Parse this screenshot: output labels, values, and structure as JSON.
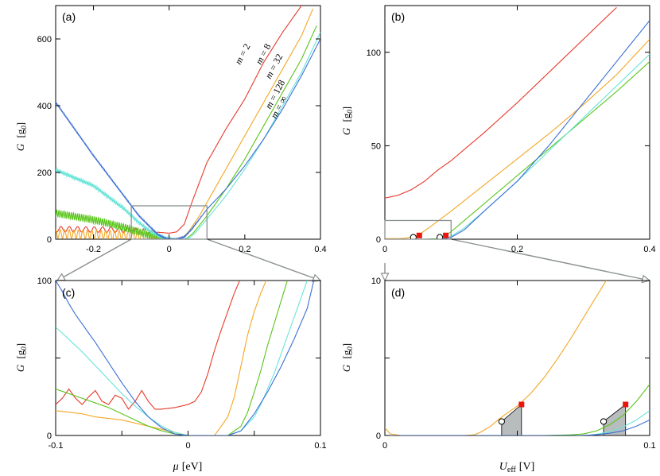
{
  "chart_data": [
    {
      "panel": "(a)",
      "type": "line",
      "xlabel": "",
      "ylabel": "G [g0]",
      "ylabel_parts": [
        "G",
        "[g",
        "0",
        "]"
      ],
      "xlim": [
        -0.3,
        0.4
      ],
      "ylim": [
        0,
        700
      ],
      "xticks": [
        -0.2,
        0,
        0.2,
        0.4
      ],
      "xtick_labels": [
        "-0.2",
        "0",
        "0.2",
        "0.4"
      ],
      "yticks": [
        0,
        200,
        400,
        600
      ],
      "ytick_labels": [
        "0",
        "200",
        "400",
        "600"
      ],
      "zoom_box": {
        "x": [
          -0.1,
          0.1
        ],
        "y": [
          0,
          100
        ]
      },
      "series": [
        {
          "name": "m = 2",
          "color": "#e8392b",
          "x": [
            -0.3,
            -0.2,
            -0.13,
            -0.1,
            -0.07,
            -0.04,
            -0.02,
            0,
            0.02,
            0.04,
            0.06,
            0.1,
            0.15,
            0.2,
            0.25,
            0.3,
            0.35
          ],
          "y": [
            30,
            29,
            28,
            26,
            24,
            22,
            20,
            18,
            22,
            45,
            110,
            230,
            330,
            420,
            530,
            620,
            700
          ],
          "osc": {
            "amp": 8,
            "period": 0.022,
            "end": -0.03
          }
        },
        {
          "name": "m = 8",
          "color": "#f5a623",
          "x": [
            -0.3,
            -0.2,
            -0.12,
            -0.08,
            -0.05,
            -0.02,
            0,
            0.02,
            0.035,
            0.05,
            0.08,
            0.12,
            0.2,
            0.25,
            0.3,
            0.35,
            0.38
          ],
          "y": [
            16,
            14,
            12,
            10,
            6,
            2,
            0,
            0,
            5,
            20,
            70,
            150,
            310,
            410,
            510,
            610,
            690
          ],
          "osc": {
            "amp": 13,
            "period": 0.012,
            "end": -0.02
          }
        },
        {
          "name": "m = 32",
          "color": "#58c51a",
          "x": [
            -0.3,
            -0.2,
            -0.12,
            -0.08,
            -0.05,
            -0.02,
            0,
            0.02,
            0.04,
            0.05,
            0.065,
            0.1,
            0.15,
            0.2,
            0.25,
            0.3,
            0.35,
            0.39
          ],
          "y": [
            78,
            58,
            36,
            22,
            10,
            2,
            0,
            0,
            0,
            5,
            20,
            70,
            150,
            240,
            340,
            440,
            540,
            640
          ],
          "osc": {
            "amp": 11,
            "period": 0.0055,
            "end": 0.0
          }
        },
        {
          "name": "m = 128",
          "color": "#68e4d8",
          "x": [
            -0.3,
            -0.2,
            -0.12,
            -0.08,
            -0.05,
            -0.02,
            0,
            0.02,
            0.04,
            0.055,
            0.07,
            0.1,
            0.15,
            0.2,
            0.25,
            0.3,
            0.35,
            0.4
          ],
          "y": [
            208,
            160,
            92,
            50,
            24,
            6,
            0,
            0,
            0,
            5,
            20,
            60,
            130,
            210,
            300,
            400,
            500,
            620
          ],
          "osc": {
            "amp": 5,
            "period": 0.0042,
            "end": 0.03
          }
        },
        {
          "name": "m = ∞",
          "color": "#3b6fd6",
          "x": [
            -0.3,
            -0.25,
            -0.2,
            -0.15,
            -0.1,
            -0.08,
            -0.05,
            -0.03,
            -0.01,
            0,
            0.02,
            0.04,
            0.06,
            0.08,
            0.1,
            0.15,
            0.2,
            0.25,
            0.3,
            0.35,
            0.4
          ],
          "y": [
            410,
            330,
            250,
            175,
            100,
            70,
            36,
            14,
            2,
            0,
            0,
            6,
            30,
            60,
            90,
            150,
            220,
            300,
            390,
            490,
            600
          ],
          "osc": {
            "amp": 2,
            "period": 0.003,
            "end": 0.1
          }
        }
      ]
    },
    {
      "panel": "(b)",
      "type": "line",
      "xlabel": "",
      "ylabel": "G [g0]",
      "ylabel_parts": [
        "G",
        "[g",
        "0",
        "]"
      ],
      "xlim": [
        0,
        0.4
      ],
      "ylim": [
        0,
        125
      ],
      "xticks": [
        0,
        0.2,
        0.4
      ],
      "xtick_labels": [
        "0",
        "0.2",
        "0.4"
      ],
      "yticks": [
        0,
        50,
        100
      ],
      "ytick_labels": [
        "0",
        "50",
        "100"
      ],
      "zoom_box": {
        "x": [
          0,
          0.1
        ],
        "y": [
          0,
          10
        ]
      },
      "series": [
        {
          "name": "m = 2",
          "color": "#e8392b",
          "x": [
            0,
            0.02,
            0.04,
            0.06,
            0.08,
            0.1,
            0.15,
            0.2,
            0.25,
            0.3,
            0.35
          ],
          "y": [
            22,
            23.5,
            26.5,
            31,
            37,
            42,
            57,
            73,
            90,
            107,
            124
          ]
        },
        {
          "name": "m = 8",
          "color": "#f5a623",
          "x": [
            0,
            0.02,
            0.03,
            0.05,
            0.07,
            0.1,
            0.15,
            0.2,
            0.25,
            0.3,
            0.35,
            0.4
          ],
          "y": [
            0.3,
            0.3,
            0.5,
            2,
            7,
            15,
            29,
            43,
            57,
            72,
            88,
            107
          ]
        },
        {
          "name": "m = 32",
          "color": "#58c51a",
          "x": [
            0,
            0.06,
            0.08,
            0.09,
            0.1,
            0.12,
            0.15,
            0.2,
            0.25,
            0.3,
            0.35,
            0.4
          ],
          "y": [
            0,
            0,
            0.3,
            1.5,
            4,
            10,
            19,
            34,
            49,
            64,
            79,
            95
          ]
        },
        {
          "name": "m = 128",
          "color": "#68e4d8",
          "x": [
            0,
            0.08,
            0.09,
            0.1,
            0.12,
            0.15,
            0.2,
            0.25,
            0.3,
            0.35,
            0.4
          ],
          "y": [
            0,
            0,
            0.3,
            1.5,
            6,
            15,
            31,
            48,
            65,
            82,
            99
          ]
        },
        {
          "name": "m = ∞",
          "color": "#3b6fd6",
          "x": [
            0,
            0.085,
            0.09,
            0.1,
            0.12,
            0.15,
            0.2,
            0.25,
            0.3,
            0.35,
            0.4
          ],
          "y": [
            0,
            0,
            0.2,
            1,
            5,
            15,
            31,
            51,
            73,
            95,
            117
          ]
        }
      ],
      "circle_markers": [
        {
          "x": 0.043,
          "y": 1
        },
        {
          "x": 0.083,
          "y": 1
        }
      ],
      "square_markers": [
        {
          "x": 0.052,
          "y": 2
        },
        {
          "x": 0.092,
          "y": 2
        }
      ]
    },
    {
      "panel": "(c)",
      "type": "line",
      "xlabel": "μ [eV]",
      "ylabel": "G [g0]",
      "ylabel_parts": [
        "G",
        "[g",
        "0",
        "]"
      ],
      "xlim": [
        -0.1,
        0.1
      ],
      "ylim": [
        0,
        100
      ],
      "xticks": [
        -0.1,
        -0.05,
        0,
        0.05,
        0.1
      ],
      "xtick_labels": [
        "-0.1",
        "",
        "0",
        "",
        "0.1"
      ],
      "yticks": [
        0,
        50,
        100
      ],
      "ytick_labels": [
        "0",
        "",
        "100"
      ],
      "series": [
        {
          "name": "m = 2",
          "color": "#e8392b",
          "x": [
            -0.1,
            -0.095,
            -0.09,
            -0.085,
            -0.08,
            -0.075,
            -0.07,
            -0.065,
            -0.06,
            -0.055,
            -0.05,
            -0.045,
            -0.04,
            -0.035,
            -0.03,
            -0.025,
            -0.02,
            -0.015,
            -0.01,
            -0.005,
            0,
            0.005,
            0.01,
            0.015,
            0.02,
            0.025,
            0.03,
            0.035,
            0.04
          ],
          "y": [
            20,
            24,
            30,
            24,
            20,
            25,
            29,
            22,
            20,
            26,
            24,
            17,
            22,
            29,
            22,
            17,
            17,
            17.5,
            18,
            19,
            20,
            22,
            28,
            40,
            55,
            68,
            80,
            92,
            102
          ]
        },
        {
          "name": "m = 8",
          "color": "#f5a623",
          "x": [
            -0.1,
            -0.09,
            -0.08,
            -0.07,
            -0.06,
            -0.05,
            -0.04,
            -0.03,
            -0.02,
            -0.01,
            0,
            0.01,
            0.02,
            0.03,
            0.035,
            0.04,
            0.045,
            0.05,
            0.055,
            0.06
          ],
          "y": [
            16,
            15,
            14,
            12,
            11,
            10,
            8,
            6,
            4,
            2,
            0,
            0,
            0,
            12,
            25,
            45,
            65,
            80,
            92,
            102
          ]
        },
        {
          "name": "m = 32",
          "color": "#58c51a",
          "x": [
            -0.1,
            -0.09,
            -0.08,
            -0.07,
            -0.06,
            -0.05,
            -0.04,
            -0.03,
            -0.02,
            -0.01,
            0,
            0.02,
            0.03,
            0.04,
            0.045,
            0.05,
            0.055,
            0.06,
            0.065,
            0.07,
            0.075
          ],
          "y": [
            30,
            27,
            24,
            21,
            18,
            14,
            10,
            6,
            3,
            1,
            0,
            0,
            0,
            6,
            15,
            28,
            42,
            58,
            72,
            86,
            100
          ]
        },
        {
          "name": "m = 128",
          "color": "#68e4d8",
          "x": [
            -0.1,
            -0.09,
            -0.08,
            -0.07,
            -0.06,
            -0.05,
            -0.04,
            -0.03,
            -0.02,
            -0.01,
            0,
            0.02,
            0.03,
            0.04,
            0.05,
            0.055,
            0.06,
            0.065,
            0.07,
            0.075,
            0.08,
            0.085,
            0.09
          ],
          "y": [
            70,
            62,
            54,
            45,
            36,
            27,
            19,
            12,
            6,
            2,
            0,
            0,
            0,
            3,
            12,
            20,
            30,
            40,
            52,
            64,
            76,
            88,
            100
          ]
        },
        {
          "name": "m = ∞",
          "color": "#3b6fd6",
          "x": [
            -0.1,
            -0.095,
            -0.09,
            -0.085,
            -0.08,
            -0.075,
            -0.07,
            -0.06,
            -0.05,
            -0.04,
            -0.03,
            -0.02,
            -0.01,
            0,
            0.02,
            0.03,
            0.04,
            0.05,
            0.06,
            0.07,
            0.08,
            0.09,
            0.095
          ],
          "y": [
            100,
            93,
            85,
            78,
            72,
            66,
            60,
            47,
            34,
            22,
            12,
            5,
            1,
            0,
            0,
            0,
            3,
            14,
            28,
            44,
            62,
            82,
            100
          ]
        }
      ]
    },
    {
      "panel": "(d)",
      "type": "line",
      "xlabel": "Ueff [V]",
      "ylabel": "G [g0]",
      "ylabel_parts": [
        "G",
        "[g",
        "0",
        "]"
      ],
      "xlim": [
        0,
        0.1
      ],
      "ylim": [
        0,
        10
      ],
      "xticks": [
        0,
        0.05,
        0.1
      ],
      "xtick_labels": [
        "0",
        "",
        "0.1"
      ],
      "yticks": [
        0,
        5,
        10
      ],
      "ytick_labels": [
        "0",
        "",
        "10"
      ],
      "series": [
        {
          "name": "m = 8",
          "color": "#f5a623",
          "x": [
            0,
            0.002,
            0.006,
            0.03,
            0.034,
            0.036,
            0.038,
            0.04,
            0.042,
            0.045,
            0.05,
            0.055,
            0.06,
            0.065,
            0.07,
            0.075,
            0.08,
            0.085
          ],
          "y": [
            0.5,
            0.1,
            0,
            0,
            0.05,
            0.2,
            0.4,
            0.6,
            0.9,
            1.3,
            1.9,
            2.7,
            3.7,
            4.9,
            6.2,
            7.6,
            9.0,
            10.4
          ]
        },
        {
          "name": "m = 32",
          "color": "#58c51a",
          "x": [
            0,
            0.06,
            0.07,
            0.075,
            0.08,
            0.085,
            0.09,
            0.095,
            0.1
          ],
          "y": [
            0,
            0,
            0.04,
            0.1,
            0.3,
            0.7,
            1.3,
            2.2,
            3.3
          ]
        },
        {
          "name": "m = 128",
          "color": "#68e4d8",
          "x": [
            0,
            0.076,
            0.08,
            0.085,
            0.09,
            0.095,
            0.1
          ],
          "y": [
            0,
            0,
            0.08,
            0.25,
            0.55,
            1.0,
            1.6
          ]
        },
        {
          "name": "m = ∞",
          "color": "#3b6fd6",
          "x": [
            0,
            0.074,
            0.08,
            0.085,
            0.09,
            0.095,
            0.1
          ],
          "y": [
            0,
            0,
            0.05,
            0.15,
            0.3,
            0.6,
            1.0
          ]
        }
      ],
      "shaded_regions": [
        {
          "x": [
            0.0441,
            0.0516
          ],
          "y_top": [
            0.9,
            2.0
          ]
        },
        {
          "x": [
            0.0826,
            0.0909
          ],
          "y_top": [
            0.9,
            2.0
          ]
        }
      ],
      "circle_markers": [
        {
          "x": 0.0441,
          "y": 0.9
        },
        {
          "x": 0.0826,
          "y": 0.9
        }
      ],
      "square_markers": [
        {
          "x": 0.0516,
          "y": 2.0
        },
        {
          "x": 0.0909,
          "y": 2.0
        }
      ]
    }
  ],
  "curve_labels": [
    {
      "prefix": "m",
      "value": "2"
    },
    {
      "prefix": "m",
      "value": "8"
    },
    {
      "prefix": "m",
      "value": "32"
    },
    {
      "prefix": "m",
      "value": "128"
    },
    {
      "prefix": "m",
      "value": "∞"
    }
  ],
  "xlabel_c": {
    "symbol": "μ",
    "unit": "[eV]"
  },
  "xlabel_d": {
    "symbol": "U",
    "sub": "eff",
    "unit": "[V]"
  }
}
